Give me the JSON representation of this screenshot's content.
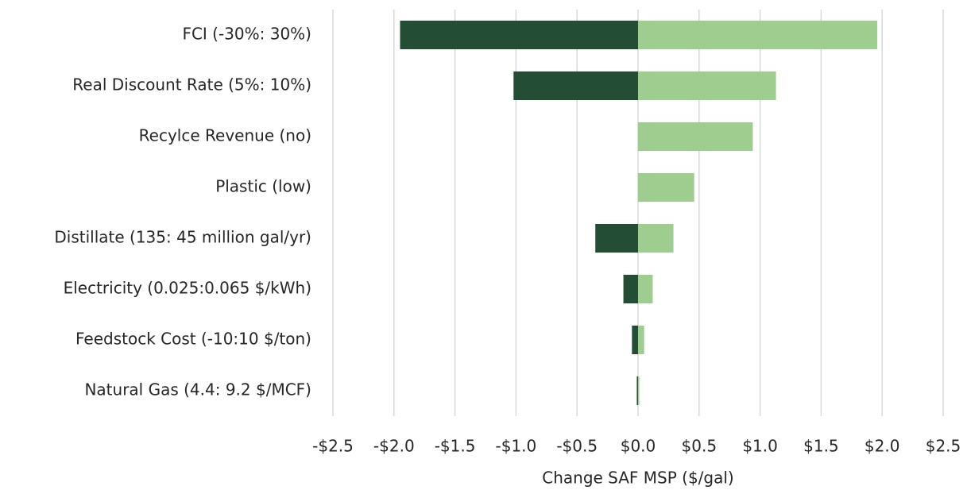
{
  "chart_data": {
    "type": "tornado",
    "categories": [
      "FCI (-30%: 30%)",
      "Real Discount Rate (5%: 10%)",
      "Recylce Revenue (no)",
      "Plastic (low)",
      "Distillate (135: 45 million gal/yr)",
      "Electricity (0.025:0.065 $/kWh)",
      "Feedstock Cost (-10:10 $/ton)",
      "Natural Gas (4.4: 9.2 $/MCF)"
    ],
    "series": [
      {
        "color": "#244d35",
        "values": [
          -1.95,
          -1.02,
          0,
          0,
          -0.35,
          -0.12,
          -0.05,
          -0.01
        ]
      },
      {
        "color": "#9fcc8f",
        "values": [
          1.96,
          1.13,
          0.94,
          0.46,
          0.29,
          0.12,
          0.05,
          0.01
        ]
      }
    ],
    "xlabel": "Change SAF MSP ($/gal)",
    "xlim": [
      -2.5,
      2.5
    ],
    "xticks": [
      {
        "value": -2.5,
        "label": "-$2.5"
      },
      {
        "value": -2.0,
        "label": "-$2.0"
      },
      {
        "value": -1.5,
        "label": "-$1.5"
      },
      {
        "value": -1.0,
        "label": "-$1.0"
      },
      {
        "value": -0.5,
        "label": "-$0.5"
      },
      {
        "value": 0,
        "label": "$0.0"
      },
      {
        "value": 0.5,
        "label": "$0.5"
      },
      {
        "value": 1.0,
        "label": "$1.0"
      },
      {
        "value": 1.5,
        "label": "$1.5"
      },
      {
        "value": 2.0,
        "label": "$2.0"
      },
      {
        "value": 2.5,
        "label": "$2.5"
      }
    ],
    "grid": true
  }
}
